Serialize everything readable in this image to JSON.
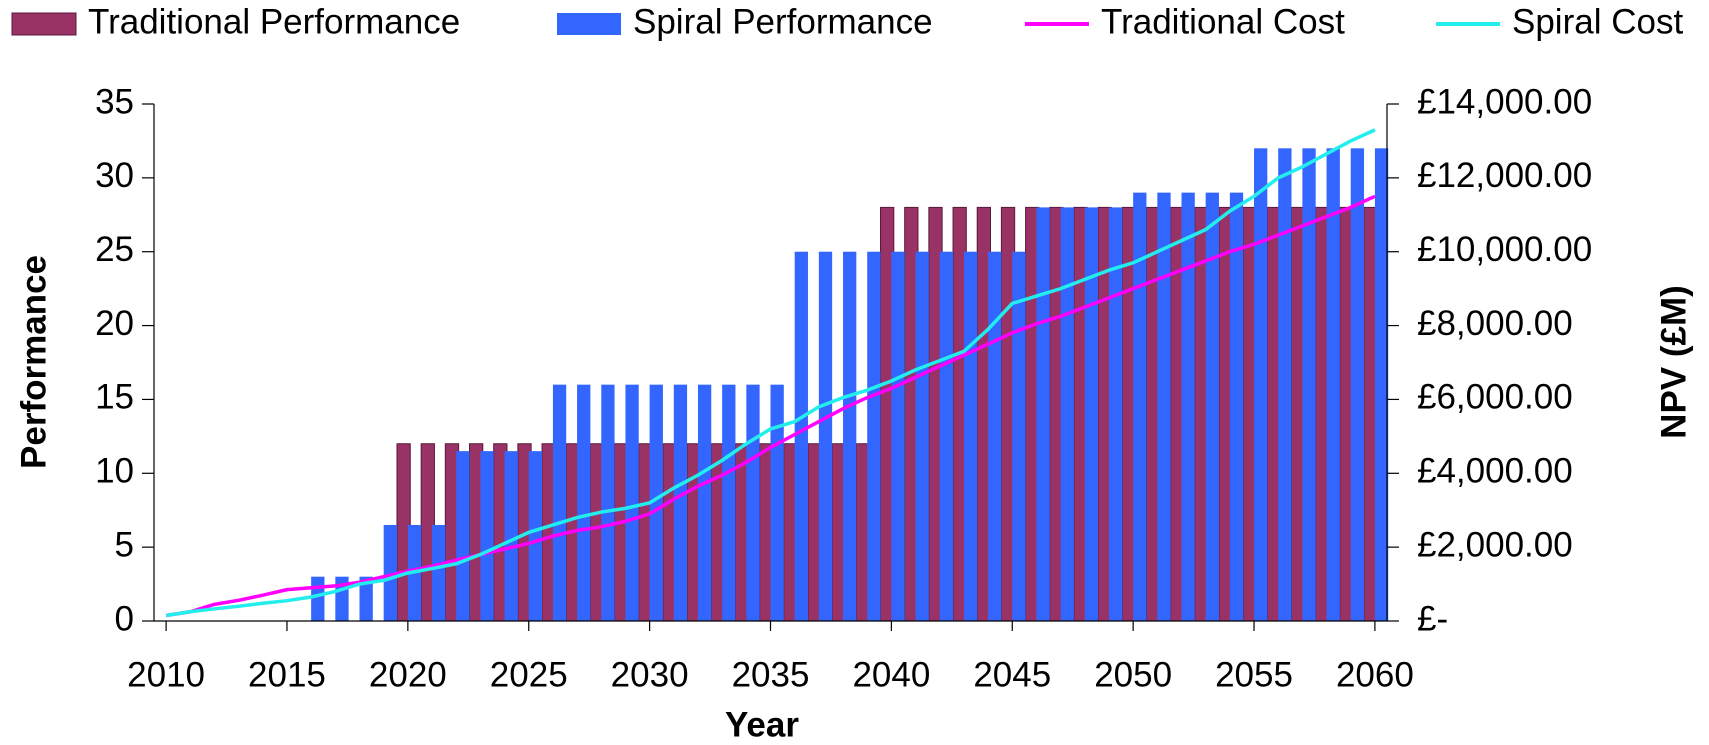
{
  "chart_data": {
    "type": "combo",
    "x_label": "Year",
    "y_label": "Performance",
    "y2_label": "NPV (£M)",
    "x": [
      2010,
      2011,
      2012,
      2013,
      2014,
      2015,
      2016,
      2017,
      2018,
      2019,
      2020,
      2021,
      2022,
      2023,
      2024,
      2025,
      2026,
      2027,
      2028,
      2029,
      2030,
      2031,
      2032,
      2033,
      2034,
      2035,
      2036,
      2037,
      2038,
      2039,
      2040,
      2041,
      2042,
      2043,
      2044,
      2045,
      2046,
      2047,
      2048,
      2049,
      2050,
      2051,
      2052,
      2053,
      2054,
      2055,
      2056,
      2057,
      2058,
      2059,
      2060
    ],
    "xlim": [
      2009.5,
      2060.5
    ],
    "xticks": [
      2010,
      2015,
      2020,
      2025,
      2030,
      2035,
      2040,
      2045,
      2050,
      2055,
      2060
    ],
    "ylim": [
      0,
      35
    ],
    "yticks": [
      0,
      5,
      10,
      15,
      20,
      25,
      30,
      35
    ],
    "y2lim": [
      0,
      14000
    ],
    "y2ticks": [
      {
        "value": 0,
        "label": "£-"
      },
      {
        "value": 2000,
        "label": "£2,000.00"
      },
      {
        "value": 4000,
        "label": "£4,000.00"
      },
      {
        "value": 6000,
        "label": "£6,000.00"
      },
      {
        "value": 8000,
        "label": "£8,000.00"
      },
      {
        "value": 10000,
        "label": "£10,000.00"
      },
      {
        "value": 12000,
        "label": "£12,000.00"
      },
      {
        "value": 14000,
        "label": "£14,000.00"
      }
    ],
    "grid": false,
    "legend": "top",
    "series": [
      {
        "name": "Traditional Performance",
        "type": "bar",
        "color": "#993366",
        "values": [
          0,
          0,
          0,
          0,
          0,
          0,
          0,
          0,
          0,
          0,
          12,
          12,
          12,
          12,
          12,
          12,
          12,
          12,
          12,
          12,
          12,
          12,
          12,
          12,
          12,
          12,
          12,
          12,
          12,
          12,
          28,
          28,
          28,
          28,
          28,
          28,
          28,
          28,
          28,
          28,
          28,
          28,
          28,
          28,
          28,
          28,
          28,
          28,
          28,
          28,
          28
        ]
      },
      {
        "name": "Spiral Performance",
        "type": "bar",
        "color": "#3366ff",
        "values": [
          0,
          0,
          0,
          0,
          0,
          0,
          3,
          3,
          3,
          6.5,
          6.5,
          6.5,
          11.5,
          11.5,
          11.5,
          11.5,
          16,
          16,
          16,
          16,
          16,
          16,
          16,
          16,
          16,
          16,
          25,
          25,
          25,
          25,
          25,
          25,
          25,
          25,
          25,
          25,
          28,
          28,
          28,
          28,
          29,
          29,
          29,
          29,
          29,
          32,
          32,
          32,
          32,
          32,
          32
        ]
      },
      {
        "name": "Traditional Cost",
        "type": "line",
        "axis": "y2",
        "color": "#ff00ff",
        "values": [
          150,
          250,
          450,
          560,
          700,
          850,
          900,
          950,
          1050,
          1200,
          1350,
          1480,
          1650,
          1800,
          1950,
          2100,
          2300,
          2450,
          2550,
          2700,
          2900,
          3300,
          3650,
          3950,
          4300,
          4700,
          5050,
          5400,
          5750,
          6050,
          6300,
          6600,
          6900,
          7200,
          7500,
          7800,
          8050,
          8250,
          8500,
          8750,
          9000,
          9250,
          9500,
          9750,
          10000,
          10200,
          10450,
          10700,
          10950,
          11200,
          11500
        ]
      },
      {
        "name": "Spiral Cost",
        "type": "line",
        "axis": "y2",
        "color": "#22eeee",
        "values": [
          150,
          250,
          330,
          400,
          480,
          550,
          650,
          800,
          1000,
          1100,
          1300,
          1420,
          1550,
          1800,
          2100,
          2400,
          2600,
          2800,
          2950,
          3050,
          3200,
          3600,
          3950,
          4350,
          4800,
          5200,
          5400,
          5800,
          6050,
          6250,
          6500,
          6800,
          7050,
          7300,
          7900,
          8600,
          8800,
          9000,
          9250,
          9500,
          9700,
          10000,
          10300,
          10600,
          11100,
          11500,
          12000,
          12300,
          12650,
          13000,
          13300
        ]
      }
    ]
  }
}
